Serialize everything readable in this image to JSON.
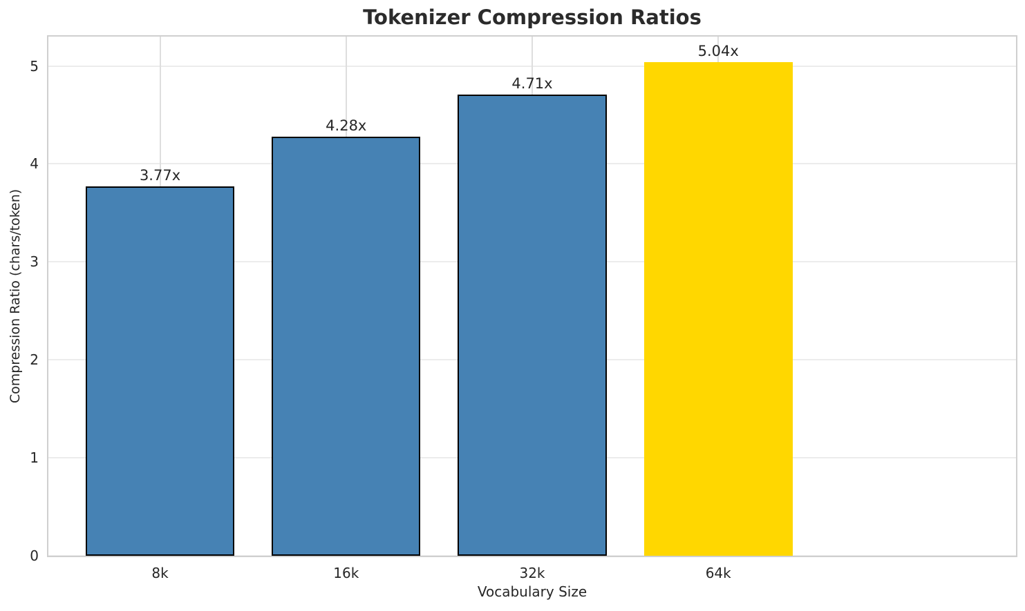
{
  "chart_data": {
    "type": "bar",
    "title": "Tokenizer Compression Ratios",
    "xlabel": "Vocabulary Size",
    "ylabel": "Compression Ratio (chars/token)",
    "categories": [
      "8k",
      "16k",
      "32k",
      "64k"
    ],
    "values": [
      3.77,
      4.28,
      4.71,
      5.04
    ],
    "bar_labels": [
      "3.77x",
      "4.28x",
      "4.71x",
      "5.04x"
    ],
    "bar_colors": [
      "#4682b4",
      "#4682b4",
      "#4682b4",
      "#ffd700"
    ],
    "bar_edge_colors": [
      "#000000",
      "#000000",
      "#000000",
      "none"
    ],
    "highlighted_category": "64k",
    "yticks": [
      "0",
      "1",
      "2",
      "3",
      "4",
      "5"
    ],
    "ylim": [
      0,
      5.3
    ],
    "grid": true,
    "legend": "none",
    "style": {
      "background_color": "#ffffff",
      "grid_color_horizontal": "#ececec",
      "grid_color_vertical": "#dedede",
      "spine_color": "#cfcfcf",
      "text_color": "#262626",
      "title_color": "#2b2b2b",
      "bar_blue": "#4682b4",
      "bar_gold": "#ffd700",
      "bar_edge": "#000000"
    }
  }
}
